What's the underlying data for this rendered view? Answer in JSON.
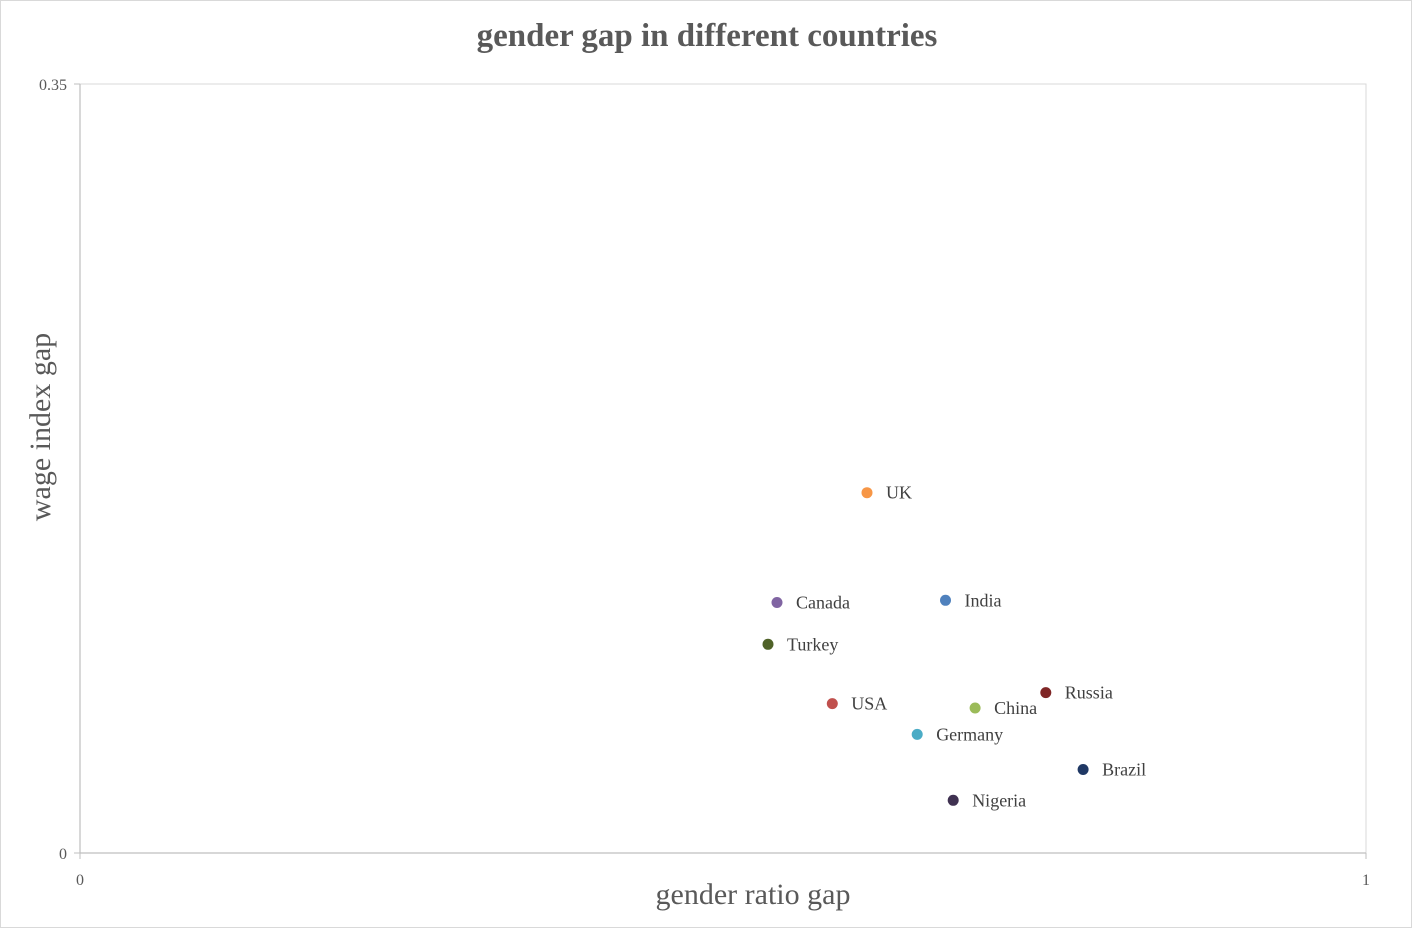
{
  "chart_data": {
    "type": "scatter",
    "title": "gender gap in different countries",
    "xlabel": "gender ratio gap",
    "ylabel": "wage index gap",
    "xlim": [
      0,
      1
    ],
    "ylim": [
      0,
      0.35
    ],
    "x_ticks": [
      "0",
      "1"
    ],
    "y_ticks": [
      "0",
      "0.35"
    ],
    "grid": false,
    "legend": "none",
    "points": [
      {
        "label": "UK",
        "x": 0.612,
        "y": 0.164,
        "color": "#f79646"
      },
      {
        "label": "Canada",
        "x": 0.542,
        "y": 0.114,
        "color": "#8064a2"
      },
      {
        "label": "India",
        "x": 0.673,
        "y": 0.115,
        "color": "#4f81bd"
      },
      {
        "label": "Turkey",
        "x": 0.535,
        "y": 0.095,
        "color": "#4f6228"
      },
      {
        "label": "Russia",
        "x": 0.751,
        "y": 0.073,
        "color": "#7f2626"
      },
      {
        "label": "USA",
        "x": 0.585,
        "y": 0.068,
        "color": "#c0504d"
      },
      {
        "label": "China",
        "x": 0.696,
        "y": 0.066,
        "color": "#9bbb59"
      },
      {
        "label": "Germany",
        "x": 0.651,
        "y": 0.054,
        "color": "#4bacc6"
      },
      {
        "label": "Brazil",
        "x": 0.78,
        "y": 0.038,
        "color": "#1f3864"
      },
      {
        "label": "Nigeria",
        "x": 0.679,
        "y": 0.024,
        "color": "#3f3151"
      }
    ]
  }
}
